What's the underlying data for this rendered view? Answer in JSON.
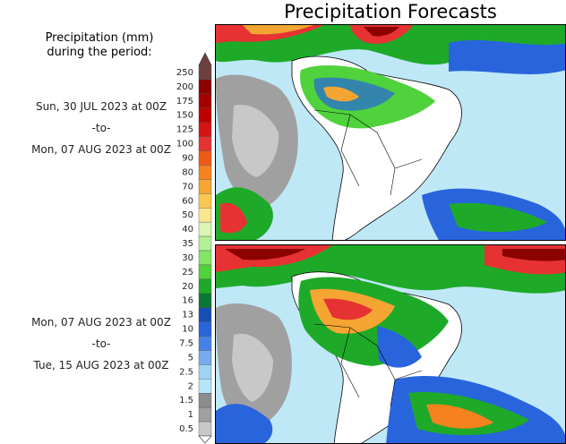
{
  "title": "Precipitation Forecasts",
  "legend": {
    "heading_line1": "Precipitation (mm)",
    "heading_line2": "during the period:",
    "levels": [
      {
        "label": "250",
        "color": "#6e3f3f"
      },
      {
        "label": "200",
        "color": "#8c0000"
      },
      {
        "label": "175",
        "color": "#a50000"
      },
      {
        "label": "150",
        "color": "#be0000"
      },
      {
        "label": "125",
        "color": "#d71414"
      },
      {
        "label": "100",
        "color": "#e63232"
      },
      {
        "label": "90",
        "color": "#f05a14"
      },
      {
        "label": "80",
        "color": "#f5821e"
      },
      {
        "label": "70",
        "color": "#f5a532"
      },
      {
        "label": "60",
        "color": "#fac850"
      },
      {
        "label": "50",
        "color": "#fae68c"
      },
      {
        "label": "40",
        "color": "#dcf5b4"
      },
      {
        "label": "35",
        "color": "#b4f096"
      },
      {
        "label": "30",
        "color": "#82e664"
      },
      {
        "label": "25",
        "color": "#50d23c"
      },
      {
        "label": "20",
        "color": "#1eaa28"
      },
      {
        "label": "16",
        "color": "#0a7832"
      },
      {
        "label": "13",
        "color": "#1450b4"
      },
      {
        "label": "10",
        "color": "#2864dc"
      },
      {
        "label": "7.5",
        "color": "#4682e6"
      },
      {
        "label": "5",
        "color": "#78aaf0"
      },
      {
        "label": "2.5",
        "color": "#a0d2f5"
      },
      {
        "label": "2",
        "color": "#b4e6fa"
      },
      {
        "label": "1.5",
        "color": "#8c8c8c"
      },
      {
        "label": "1",
        "color": "#a0a0a0"
      },
      {
        "label": "0.5",
        "color": "#c8c8c8"
      }
    ]
  },
  "periods": [
    {
      "start": "Sun, 30 JUL 2023 at 00Z",
      "sep": "-to-",
      "end": "Mon, 07 AUG 2023 at 00Z"
    },
    {
      "start": "Mon, 07 AUG 2023 at 00Z",
      "sep": "-to-",
      "end": "Tue, 15 AUG 2023 at 00Z"
    }
  ],
  "colors": {
    "ocean_dry": "#bfe8f7",
    "land_dry": "#ffffff",
    "border": "#000000"
  }
}
